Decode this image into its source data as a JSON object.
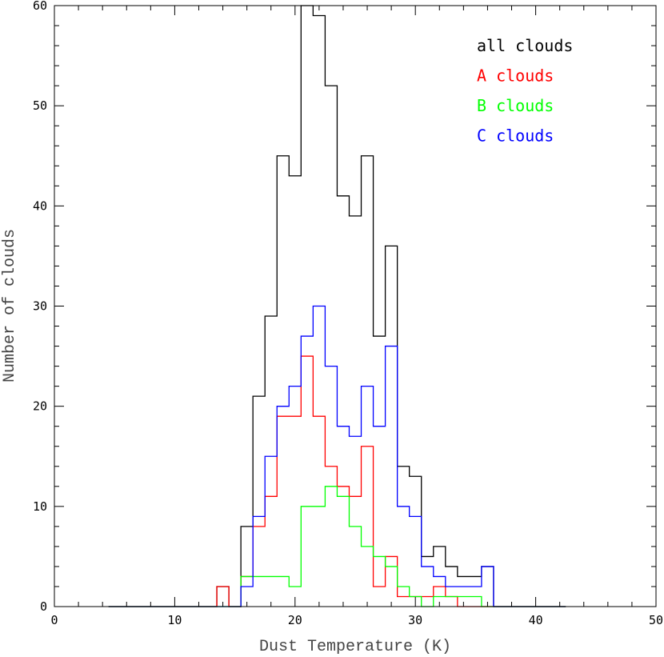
{
  "chart_data": {
    "type": "histogram",
    "xlabel": "Dust Temperature (K)",
    "ylabel": "Number of clouds",
    "xlim": [
      0,
      50
    ],
    "ylim": [
      0,
      60
    ],
    "xticks": [
      0,
      10,
      20,
      30,
      40,
      50
    ],
    "yticks": [
      0,
      10,
      20,
      30,
      40,
      50,
      60
    ],
    "bin_width": 1,
    "legend_position": "top-right",
    "series": [
      {
        "name": "all clouds",
        "color": "#000000",
        "bin_starts": [
          13.5,
          14.5,
          15.5,
          16.5,
          17.5,
          18.5,
          19.5,
          20.5,
          21.5,
          22.5,
          23.5,
          24.5,
          25.5,
          26.5,
          27.5,
          28.5,
          29.5,
          30.5,
          31.5,
          32.5,
          33.5,
          34.5,
          35.5
        ],
        "values": [
          2,
          0,
          8,
          21,
          29,
          45,
          43,
          62,
          59,
          52,
          41,
          39,
          45,
          27,
          36,
          14,
          13,
          5,
          6,
          4,
          3,
          3,
          4
        ]
      },
      {
        "name": "A clouds",
        "color": "#ff0000",
        "bin_starts": [
          13.5,
          14.5,
          15.5,
          16.5,
          17.5,
          18.5,
          19.5,
          20.5,
          21.5,
          22.5,
          23.5,
          24.5,
          25.5,
          26.5,
          27.5,
          28.5,
          29.5,
          30.5,
          31.5,
          32.5,
          33.5
        ],
        "values": [
          2,
          0,
          3,
          8,
          11,
          19,
          19,
          25,
          19,
          14,
          12,
          11,
          16,
          2,
          5,
          1,
          1,
          1,
          2,
          1,
          0
        ]
      },
      {
        "name": "B clouds",
        "color": "#00ff00",
        "bin_starts": [
          15.5,
          16.5,
          17.5,
          18.5,
          19.5,
          20.5,
          21.5,
          22.5,
          23.5,
          24.5,
          25.5,
          26.5,
          27.5,
          28.5,
          29.5,
          30.5,
          31.5,
          32.5,
          33.5,
          34.5,
          35.5
        ],
        "values": [
          3,
          3,
          3,
          3,
          2,
          10,
          10,
          12,
          11,
          8,
          6,
          5,
          4,
          2,
          1,
          0,
          1,
          1,
          1,
          1,
          0
        ]
      },
      {
        "name": "C clouds",
        "color": "#0000ff",
        "bin_starts": [
          15.5,
          16.5,
          17.5,
          18.5,
          19.5,
          20.5,
          21.5,
          22.5,
          23.5,
          24.5,
          25.5,
          26.5,
          27.5,
          28.5,
          29.5,
          30.5,
          31.5,
          32.5,
          33.5,
          34.5,
          35.5
        ],
        "values": [
          2,
          9,
          15,
          20,
          22,
          27,
          30,
          24,
          18,
          17,
          22,
          18,
          26,
          10,
          9,
          4,
          3,
          2,
          2,
          2,
          4
        ]
      }
    ]
  }
}
